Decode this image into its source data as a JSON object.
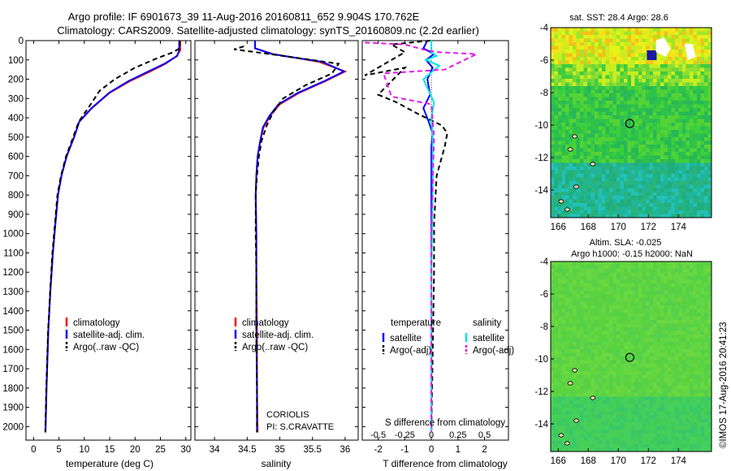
{
  "header": {
    "line1": "Argo profile: IF 6901673_39 11-Aug-2016 20160811_652 9.904S 170.762E",
    "line2": "Climatology: CARS2009. Satellite-adjusted climatology: synTS_20160809.nc (2.2d earlier)"
  },
  "colors": {
    "climatology": "#ff0000",
    "satellite": "#0000ff",
    "argo": "#000000",
    "s_satellite": "#00e5e5",
    "s_argo": "#e619e6"
  },
  "chart_data": [
    {
      "type": "line",
      "panel": "temperature",
      "xlabel": "temperature (deg C)",
      "xlim": [
        -1.5,
        31
      ],
      "xticks": [
        "0",
        "5",
        "10",
        "15",
        "20",
        "25",
        "30"
      ],
      "xtick_values": [
        0,
        5,
        10,
        15,
        20,
        25,
        30
      ],
      "ylim": [
        2070,
        0
      ],
      "yticks": [
        "0",
        "100",
        "200",
        "300",
        "400",
        "500",
        "600",
        "700",
        "800",
        "900",
        "1000",
        "1100",
        "1200",
        "1300",
        "1400",
        "1500",
        "1600",
        "1700",
        "1800",
        "1900",
        "2000"
      ],
      "ytick_values": [
        0,
        100,
        200,
        300,
        400,
        500,
        600,
        700,
        800,
        900,
        1000,
        1100,
        1200,
        1300,
        1400,
        1500,
        1600,
        1700,
        1800,
        1900,
        2000
      ],
      "legend": [
        "climatology",
        "satellite-adj. clim.",
        "Argo(..raw -QC)"
      ],
      "series": [
        {
          "name": "climatology",
          "color": "climatology",
          "dash": false,
          "x": [
            28.9,
            28.9,
            28.2,
            26,
            23,
            19,
            15,
            11.5,
            9,
            8,
            6.5,
            5.5,
            4.8,
            4.3,
            3.8,
            3.3,
            2.9,
            2.55,
            2.35
          ],
          "y": [
            0,
            50,
            80,
            120,
            160,
            210,
            270,
            350,
            420,
            500,
            600,
            700,
            800,
            950,
            1100,
            1300,
            1500,
            1800,
            2030
          ]
        },
        {
          "name": "satellite-adj. clim.",
          "color": "satellite",
          "dash": false,
          "x": [
            28.7,
            28.7,
            28.3,
            25.8,
            22.6,
            18.7,
            14.9,
            11.4,
            9,
            8,
            6.5,
            5.5,
            4.8,
            4.3,
            3.8,
            3.3,
            2.9,
            2.55,
            2.35
          ],
          "y": [
            0,
            50,
            80,
            120,
            160,
            210,
            270,
            350,
            420,
            500,
            600,
            700,
            800,
            950,
            1100,
            1300,
            1500,
            1800,
            2030
          ]
        },
        {
          "name": "Argo(..raw -QC)",
          "color": "argo",
          "dash": true,
          "x": [
            28.8,
            28.8,
            27.5,
            24,
            20,
            16,
            13,
            11,
            8.9,
            7.8,
            6.4,
            5.4,
            4.7,
            4.2,
            3.7,
            3.25,
            2.85,
            2.5,
            2.3
          ],
          "y": [
            0,
            40,
            60,
            95,
            140,
            200,
            260,
            340,
            420,
            500,
            600,
            700,
            800,
            950,
            1100,
            1300,
            1500,
            1800,
            2030
          ]
        }
      ],
      "annotations": []
    },
    {
      "type": "line",
      "panel": "salinity",
      "xlabel": "salinity",
      "xlim": [
        33.7,
        36.2
      ],
      "xticks": [
        "34",
        "34.5",
        "35",
        "35.5",
        "36"
      ],
      "xtick_values": [
        34,
        34.5,
        35,
        35.5,
        36
      ],
      "ylim": [
        2070,
        0
      ],
      "legend": [
        "climatology",
        "satellite-adj. clim.",
        "Argo(..raw -QC)"
      ],
      "series": [
        {
          "name": "climatology",
          "color": "climatology",
          "dash": false,
          "x": [
            34.62,
            34.62,
            34.9,
            35.6,
            36.0,
            35.7,
            35.3,
            35.0,
            34.85,
            34.75,
            34.7,
            34.66,
            34.64,
            34.63,
            34.64,
            34.64,
            34.65,
            34.65,
            34.66
          ],
          "y": [
            0,
            40,
            70,
            110,
            160,
            210,
            270,
            330,
            390,
            450,
            520,
            600,
            700,
            800,
            1000,
            1200,
            1500,
            1800,
            2030
          ]
        },
        {
          "name": "satellite-adj. clim.",
          "color": "satellite",
          "dash": false,
          "x": [
            34.62,
            34.62,
            34.88,
            35.65,
            35.98,
            35.68,
            35.28,
            34.98,
            34.84,
            34.74,
            34.7,
            34.66,
            34.64,
            34.63,
            34.64,
            34.64,
            34.64,
            34.65,
            34.65
          ],
          "y": [
            0,
            40,
            70,
            110,
            160,
            210,
            270,
            330,
            390,
            450,
            520,
            600,
            700,
            800,
            1000,
            1200,
            1500,
            1800,
            2030
          ]
        },
        {
          "name": "Argo(..raw -QC)",
          "color": "argo",
          "dash": true,
          "x": [
            34.45,
            34.3,
            34.85,
            35.9,
            35.8,
            35.4,
            35.05,
            34.9,
            34.8,
            34.72,
            34.68,
            34.65,
            34.63,
            34.63,
            34.64,
            34.64,
            34.65,
            34.65
          ],
          "y": [
            30,
            45,
            70,
            120,
            170,
            230,
            300,
            370,
            440,
            520,
            600,
            700,
            800,
            1000,
            1200,
            1500,
            1800,
            2030
          ]
        }
      ],
      "annotations": [
        "CORIOLIS",
        "PI: S.CRAVATTE"
      ]
    },
    {
      "type": "line",
      "panel": "difference",
      "xlabel": "T difference from climatology",
      "xlabel_top": "S difference from climatology",
      "xlim": [
        -2.6,
        2.9
      ],
      "xticks": [
        "-2",
        "-1",
        "0",
        "1",
        "2"
      ],
      "xtick_values": [
        -2,
        -1,
        0,
        1,
        2
      ],
      "s_xticks": [
        "-0.5",
        "-0.25",
        "0",
        "0.25",
        "0.5"
      ],
      "s_xtick_positions": [
        -2,
        -1,
        0,
        1,
        2
      ],
      "ylim": [
        2070,
        0
      ],
      "legend_left_title": "temperature",
      "legend_right_title": "salinity",
      "legend_left": [
        "satellite",
        "Argo(-adj)"
      ],
      "legend_right": [
        "satellite",
        "Argo(-adj)"
      ],
      "series": [
        {
          "name": "satellite",
          "quantity": "temperature",
          "color": "satellite",
          "dash": false,
          "x": [
            -0.15,
            -0.3,
            0.1,
            -0.2,
            0.05,
            -0.15,
            -0.05,
            -0.3,
            -0.1,
            0.05,
            0,
            0,
            0,
            0,
            0
          ],
          "y": [
            0,
            40,
            70,
            100,
            140,
            200,
            280,
            350,
            420,
            480,
            550,
            700,
            1000,
            1500,
            2030
          ]
        },
        {
          "name": "Argo(-adj)",
          "quantity": "temperature",
          "color": "argo",
          "dash": true,
          "x": [
            -0.05,
            -1.5,
            -1.0,
            -2.5,
            -1.0,
            -2.0,
            -1.3,
            -0.5,
            0.4,
            0.6,
            0.5,
            0.2,
            0.1,
            0.1,
            0
          ],
          "y": [
            0,
            20,
            60,
            180,
            140,
            280,
            320,
            380,
            440,
            480,
            550,
            700,
            950,
            1200,
            2030
          ]
        },
        {
          "name": "satellite",
          "quantity": "salinity",
          "color": "s_satellite",
          "dash": false,
          "x": [
            0,
            0,
            0.2,
            -0.2,
            0.3,
            -0.3,
            0.1,
            0,
            0.05,
            0.05,
            0,
            0,
            0
          ],
          "y": [
            0,
            60,
            80,
            100,
            130,
            200,
            320,
            400,
            500,
            800,
            1200,
            1600,
            2030
          ]
        },
        {
          "name": "Argo(-adj)",
          "quantity": "salinity",
          "color": "s_argo",
          "dash": true,
          "x": [
            -2.5,
            -1.0,
            -0.2,
            0.3,
            1.7,
            0.5,
            -1.8,
            -1.5,
            0,
            0.1,
            0,
            0
          ],
          "y": [
            10,
            20,
            50,
            60,
            70,
            150,
            170,
            290,
            330,
            500,
            1000,
            2030
          ]
        }
      ],
      "annotations": []
    },
    {
      "type": "heatmap",
      "panel": "sst_map",
      "title": "sat. SST: 28.4 Argo: 28.6",
      "xlim": [
        165.5,
        176.2
      ],
      "ylim": [
        -15.7,
        -4
      ],
      "xticks": [
        "166",
        "168",
        "170",
        "172",
        "174"
      ],
      "xtick_values": [
        166,
        168,
        170,
        172,
        174
      ],
      "yticks": [
        "-4",
        "-6",
        "-8",
        "-10",
        "-12",
        "-14"
      ],
      "ytick_values": [
        -4,
        -6,
        -8,
        -10,
        -12,
        -14
      ],
      "marker": {
        "lon": 170.762,
        "lat": -9.904
      }
    },
    {
      "type": "heatmap",
      "panel": "sla_map",
      "title_line1": "Altim. SLA: -0.025",
      "title_line2": "Argo h1000: -0.15 h2000: NaN",
      "xlim": [
        165.5,
        176.2
      ],
      "ylim": [
        -15.7,
        -4
      ],
      "xticks": [
        "166",
        "168",
        "170",
        "172",
        "174"
      ],
      "xtick_values": [
        166,
        168,
        170,
        172,
        174
      ],
      "yticks": [
        "-4",
        "-6",
        "-8",
        "-10",
        "-12",
        "-14"
      ],
      "ytick_values": [
        -4,
        -6,
        -8,
        -10,
        -12,
        -14
      ],
      "marker": {
        "lon": 170.762,
        "lat": -9.904
      }
    }
  ],
  "footer": {
    "stamp": "©IMOS 17-Aug-2016 20:41:23"
  }
}
